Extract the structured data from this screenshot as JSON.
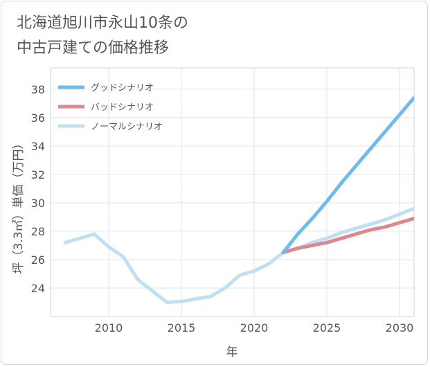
{
  "title_lines": [
    "北海道旭川市永山10条の",
    "中古戸建ての価格推移"
  ],
  "chart_data": {
    "type": "line",
    "title": "北海道旭川市永山10条の中古戸建ての価格推移",
    "xlabel": "年",
    "ylabel": "坪（3.3㎡）単価（万円）",
    "xlim": [
      2006,
      2031
    ],
    "ylim": [
      22,
      39.5
    ],
    "xticks": [
      2010,
      2015,
      2020,
      2025,
      2030
    ],
    "yticks": [
      24,
      26,
      28,
      30,
      32,
      34,
      36,
      38
    ],
    "grid": true,
    "legend_position": "top-left",
    "series": [
      {
        "name": "グッドシナリオ",
        "color": "#6fbcec",
        "x": [
          2022,
          2023,
          2024,
          2025,
          2026,
          2027,
          2028,
          2029,
          2030,
          2031
        ],
        "y": [
          26.5,
          27.8,
          28.9,
          30.1,
          31.4,
          32.6,
          33.8,
          35.0,
          36.2,
          37.4
        ]
      },
      {
        "name": "バッドシナリオ",
        "color": "#e0868f",
        "x": [
          2022,
          2023,
          2024,
          2025,
          2026,
          2027,
          2028,
          2029,
          2030,
          2031
        ],
        "y": [
          26.5,
          26.8,
          27.0,
          27.2,
          27.5,
          27.8,
          28.1,
          28.3,
          28.6,
          28.9
        ]
      },
      {
        "name": "ノーマルシナリオ",
        "color": "#c1dff0",
        "x": [
          2007,
          2008,
          2009,
          2010,
          2011,
          2012,
          2013,
          2014,
          2015,
          2016,
          2017,
          2018,
          2019,
          2020,
          2021,
          2022,
          2023,
          2024,
          2025,
          2026,
          2027,
          2028,
          2029,
          2030,
          2031
        ],
        "y": [
          27.2,
          27.5,
          27.8,
          26.9,
          26.2,
          24.6,
          23.8,
          23.0,
          23.05,
          23.25,
          23.4,
          24.0,
          24.9,
          25.2,
          25.7,
          26.5,
          26.8,
          27.2,
          27.5,
          27.9,
          28.2,
          28.5,
          28.8,
          29.2,
          29.6
        ]
      }
    ]
  }
}
